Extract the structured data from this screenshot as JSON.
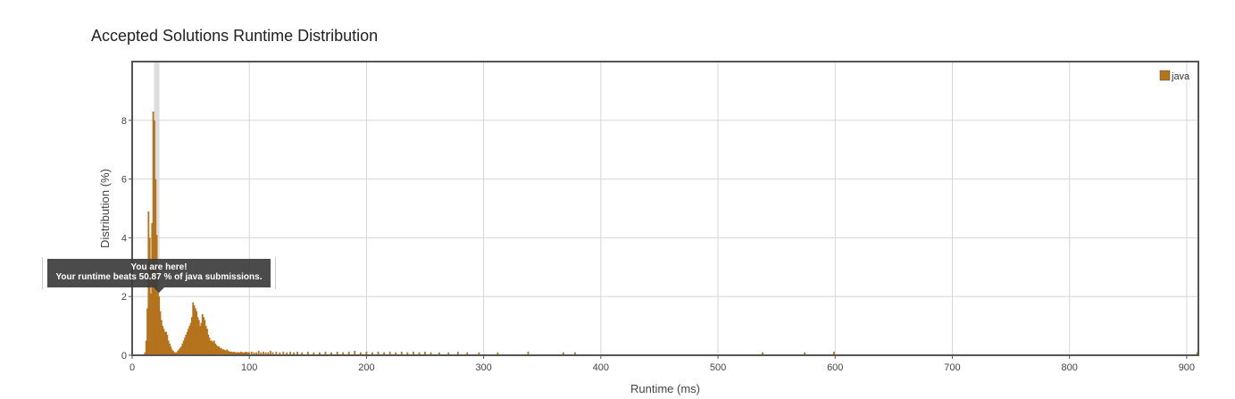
{
  "chart_data": {
    "type": "bar",
    "title": "Accepted Solutions Runtime Distribution",
    "xlabel": "Runtime (ms)",
    "ylabel": "Distribution (%)",
    "xlim": [
      0,
      910
    ],
    "ylim": [
      0,
      10
    ],
    "x_ticks": [
      0,
      100,
      200,
      300,
      400,
      500,
      600,
      700,
      800,
      900
    ],
    "y_ticks": [
      0,
      2,
      4,
      6,
      8
    ],
    "grid": true,
    "legend_position": "top-right",
    "highlight_runtime": 21,
    "series": [
      {
        "name": "java",
        "color": "#b5731c",
        "bar_width_ms": 1.4,
        "x": [
          11,
          12,
          13,
          14,
          15,
          16,
          17,
          18,
          19,
          20,
          21,
          22,
          23,
          24,
          25,
          26,
          27,
          28,
          29,
          30,
          31,
          32,
          33,
          34,
          35,
          36,
          37,
          38,
          39,
          40,
          41,
          42,
          43,
          44,
          45,
          46,
          47,
          48,
          49,
          50,
          51,
          52,
          53,
          54,
          55,
          56,
          57,
          58,
          59,
          60,
          61,
          62,
          63,
          64,
          65,
          66,
          67,
          68,
          69,
          70,
          71,
          72,
          73,
          74,
          75,
          76,
          77,
          78,
          79,
          80,
          81,
          82,
          83,
          84,
          85,
          86,
          87,
          88,
          89,
          90,
          91,
          92,
          93,
          94,
          95,
          96,
          97,
          98,
          99,
          100,
          102,
          104,
          106,
          108,
          110,
          112,
          114,
          116,
          118,
          120,
          123,
          126,
          129,
          132,
          135,
          138,
          141,
          145,
          150,
          155,
          160,
          165,
          170,
          175,
          180,
          185,
          190,
          195,
          200,
          205,
          210,
          215,
          220,
          225,
          230,
          235,
          240,
          245,
          250,
          255,
          262,
          270,
          278,
          286,
          296,
          312,
          338,
          368,
          378,
          538,
          574,
          599,
          909
        ],
        "values": [
          0.1,
          0.5,
          1.6,
          4.9,
          4.0,
          2.1,
          4.5,
          8.3,
          8.0,
          6.0,
          4.1,
          2.2,
          2.0,
          1.5,
          1.2,
          1.0,
          0.9,
          0.8,
          0.8,
          0.7,
          0.5,
          0.4,
          0.3,
          0.2,
          0.15,
          0.1,
          0.1,
          0.1,
          0.15,
          0.2,
          0.25,
          0.3,
          0.4,
          0.5,
          0.6,
          0.7,
          0.8,
          0.9,
          1.0,
          1.1,
          1.3,
          1.8,
          1.7,
          1.6,
          1.5,
          1.3,
          1.2,
          1.0,
          1.1,
          1.4,
          1.3,
          1.2,
          1.0,
          0.9,
          0.7,
          0.6,
          0.5,
          0.5,
          0.45,
          0.5,
          0.4,
          0.35,
          0.3,
          0.3,
          0.25,
          0.25,
          0.2,
          0.2,
          0.18,
          0.16,
          0.2,
          0.15,
          0.13,
          0.12,
          0.12,
          0.1,
          0.12,
          0.1,
          0.1,
          0.1,
          0.1,
          0.1,
          0.12,
          0.1,
          0.1,
          0.1,
          0.12,
          0.1,
          0.1,
          0.1,
          0.12,
          0.1,
          0.1,
          0.15,
          0.1,
          0.12,
          0.1,
          0.1,
          0.15,
          0.1,
          0.12,
          0.1,
          0.12,
          0.1,
          0.12,
          0.1,
          0.12,
          0.1,
          0.12,
          0.1,
          0.1,
          0.12,
          0.1,
          0.12,
          0.1,
          0.12,
          0.15,
          0.1,
          0.12,
          0.1,
          0.12,
          0.1,
          0.12,
          0.1,
          0.12,
          0.1,
          0.12,
          0.1,
          0.12,
          0.1,
          0.1,
          0.1,
          0.12,
          0.1,
          0.1,
          0.1,
          0.12,
          0.1,
          0.1,
          0.1,
          0.1,
          0.12,
          0.1
        ]
      }
    ]
  },
  "tooltip": {
    "line1": "You are here!",
    "line2": "Your runtime beats 50.87 % of java submissions."
  }
}
